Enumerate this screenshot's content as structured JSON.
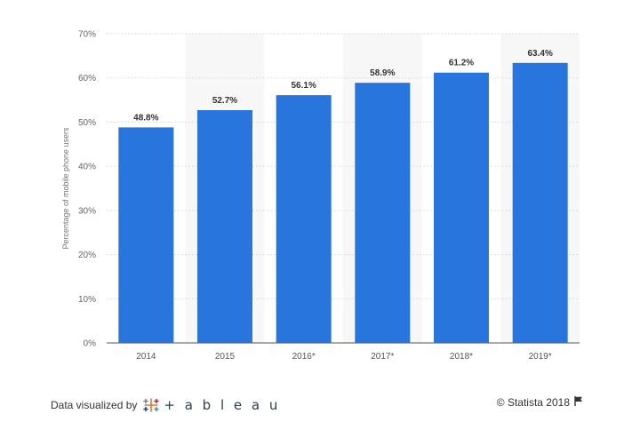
{
  "chart_data": {
    "type": "bar",
    "categories": [
      "2014",
      "2015",
      "2016*",
      "2017*",
      "2018*",
      "2019*"
    ],
    "values": [
      48.8,
      52.7,
      56.1,
      58.9,
      61.2,
      63.4
    ],
    "value_labels": [
      "48.8%",
      "52.7%",
      "56.1%",
      "58.9%",
      "61.2%",
      "63.4%"
    ],
    "ylabel": "Percentage of mobile phone users",
    "ylim": [
      0,
      70
    ],
    "yticks": [
      0,
      10,
      20,
      30,
      40,
      50,
      60,
      70
    ],
    "ytick_labels": [
      "0%",
      "10%",
      "20%",
      "30%",
      "40%",
      "50%",
      "60%",
      "70%"
    ],
    "bar_color": "#2876dd",
    "grid": true
  },
  "footer": {
    "visualized_by": "Data visualized by",
    "tableau_word": "+ a b l e a u",
    "copyright": "© Statista 2018"
  },
  "icons": {
    "tableau": "tableau-logo-icon",
    "flag": "flag-icon"
  }
}
